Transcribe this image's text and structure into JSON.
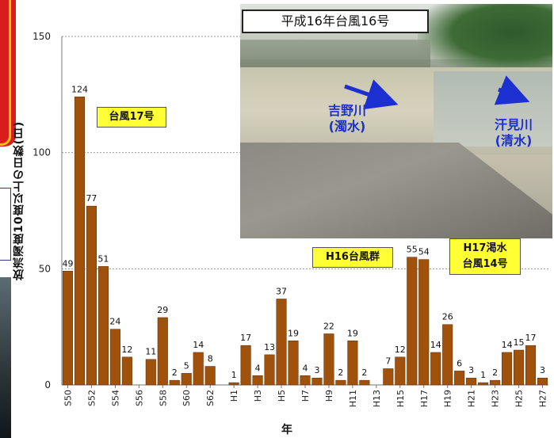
{
  "colors": {
    "bar": "#a0520d",
    "bar_stroke": "#5a2c05",
    "grid": "#999999",
    "arrow": "#1c2fd0"
  },
  "chart_data": {
    "type": "bar",
    "ylabel": "放流濁度10度以上の日数(日)",
    "xlabel": "年",
    "ylim": [
      0,
      150
    ],
    "yticks": [
      0,
      50,
      100,
      150
    ],
    "grid": "horizontal dashed",
    "categories": [
      "S50",
      "S51",
      "S52",
      "S53",
      "S54",
      "S55",
      "S56",
      "S57",
      "S58",
      "S59",
      "S60",
      "S61",
      "S62",
      "S63",
      "H1",
      "H2",
      "H3",
      "H4",
      "H5",
      "H6",
      "H7",
      "H8",
      "H9",
      "H10",
      "H11",
      "H12",
      "H13",
      "H14",
      "H15",
      "H16",
      "H17",
      "H18",
      "H19",
      "H20",
      "H21",
      "H22",
      "H23",
      "H24",
      "H25",
      "H26",
      "H27"
    ],
    "xtick_labels": [
      "S50",
      "S52",
      "S54",
      "S56",
      "S58",
      "S60",
      "S62",
      "H1",
      "H3",
      "H5",
      "H7",
      "H9",
      "H11",
      "H13",
      "H15",
      "H17",
      "H19",
      "H21",
      "H23",
      "H25",
      "H27"
    ],
    "values": [
      49,
      124,
      77,
      51,
      24,
      12,
      null,
      11,
      29,
      2,
      5,
      14,
      8,
      null,
      1,
      17,
      4,
      13,
      37,
      19,
      4,
      3,
      22,
      2,
      19,
      2,
      null,
      7,
      12,
      55,
      54,
      14,
      26,
      6,
      3,
      1,
      2,
      14,
      15,
      17,
      3
    ],
    "value_labels": [
      "49",
      "124",
      "77",
      "51",
      "24",
      "12",
      "",
      "11",
      "29",
      "2",
      "5",
      "14",
      "8",
      "",
      "1",
      "17",
      "4",
      "13",
      "37",
      "19",
      "4",
      "3",
      "22",
      "2",
      "19",
      "2",
      "",
      "7",
      "12",
      "55",
      "54",
      "14",
      "26",
      "6",
      "3",
      "1",
      "2",
      "14",
      "15",
      "17",
      "3"
    ]
  },
  "callouts": {
    "typhoon17": "台風17号",
    "h16_typhoons": "H16台風群",
    "h17_line1": "H17渇水",
    "h17_line2": "台風14号"
  },
  "photo": {
    "title": "平成16年台風16号",
    "river_left_line1": "吉野川",
    "river_left_line2": "(濁水)",
    "river_right_line1": "汗見川",
    "river_right_line2": "(清水)"
  }
}
